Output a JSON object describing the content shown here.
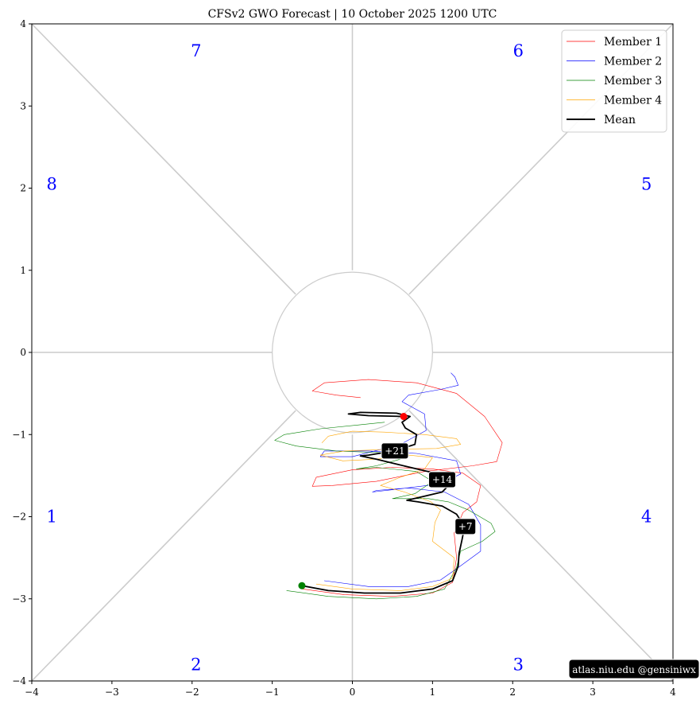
{
  "chart_data": {
    "type": "line",
    "title": "CFSv2 GWO Forecast   |   10  October  2025 1200 UTC",
    "xlim": [
      -4,
      4
    ],
    "ylim": [
      -4,
      4
    ],
    "x_ticks": [
      "−4",
      "−3",
      "−2",
      "−1",
      "0",
      "1",
      "2",
      "3",
      "4"
    ],
    "y_ticks": [
      "−4",
      "−3",
      "−2",
      "−1",
      "0",
      "1",
      "2",
      "3",
      "4"
    ],
    "phase_labels": [
      {
        "text": "1",
        "x": -3.75,
        "y": -2.0
      },
      {
        "text": "2",
        "x": -1.95,
        "y": -3.8
      },
      {
        "text": "3",
        "x": 2.07,
        "y": -3.8
      },
      {
        "text": "4",
        "x": 3.67,
        "y": -2.0
      },
      {
        "text": "5",
        "x": 3.67,
        "y": 2.05
      },
      {
        "text": "6",
        "x": 2.07,
        "y": 3.67
      },
      {
        "text": "7",
        "x": -1.95,
        "y": 3.67
      },
      {
        "text": "8",
        "x": -3.75,
        "y": 2.05
      }
    ],
    "legend_position": "top-right",
    "series": [
      {
        "name": "Member 1",
        "color": "#ff0000",
        "width": 0.6,
        "points": [
          [
            -0.62,
            -2.88
          ],
          [
            -0.1,
            -2.95
          ],
          [
            0.5,
            -2.97
          ],
          [
            1.0,
            -2.93
          ],
          [
            1.25,
            -2.8
          ],
          [
            1.3,
            -2.5
          ],
          [
            1.27,
            -2.2
          ],
          [
            1.38,
            -1.95
          ],
          [
            1.55,
            -1.82
          ],
          [
            1.6,
            -1.62
          ],
          [
            1.38,
            -1.47
          ],
          [
            1.0,
            -1.42
          ],
          [
            0.5,
            -1.4
          ],
          [
            0.0,
            -1.43
          ],
          [
            -0.45,
            -1.52
          ],
          [
            -0.5,
            -1.63
          ],
          [
            -0.25,
            -1.62
          ],
          [
            0.3,
            -1.57
          ],
          [
            0.9,
            -1.45
          ],
          [
            1.5,
            -1.38
          ],
          [
            1.8,
            -1.33
          ],
          [
            1.87,
            -1.1
          ],
          [
            1.65,
            -0.78
          ],
          [
            1.3,
            -0.5
          ],
          [
            0.8,
            -0.37
          ],
          [
            0.2,
            -0.33
          ],
          [
            -0.35,
            -0.37
          ],
          [
            -0.5,
            -0.47
          ],
          [
            -0.2,
            -0.52
          ],
          [
            0.1,
            -0.55
          ]
        ]
      },
      {
        "name": "Member 2",
        "color": "#0000ff",
        "width": 0.6,
        "points": [
          [
            -0.35,
            -2.78
          ],
          [
            0.2,
            -2.85
          ],
          [
            0.7,
            -2.85
          ],
          [
            1.1,
            -2.77
          ],
          [
            1.32,
            -2.62
          ],
          [
            1.6,
            -2.42
          ],
          [
            1.6,
            -2.1
          ],
          [
            1.45,
            -1.85
          ],
          [
            1.15,
            -1.7
          ],
          [
            0.7,
            -1.65
          ],
          [
            0.3,
            -1.68
          ],
          [
            0.25,
            -1.7
          ],
          [
            0.6,
            -1.66
          ],
          [
            1.1,
            -1.6
          ],
          [
            1.35,
            -1.48
          ],
          [
            1.3,
            -1.32
          ],
          [
            0.8,
            -1.23
          ],
          [
            0.2,
            -1.2
          ],
          [
            -0.35,
            -1.2
          ],
          [
            -0.4,
            -1.27
          ],
          [
            0.0,
            -1.27
          ],
          [
            0.6,
            -1.12
          ],
          [
            0.92,
            -0.95
          ],
          [
            0.9,
            -0.75
          ],
          [
            0.62,
            -0.6
          ],
          [
            0.7,
            -0.52
          ],
          [
            1.1,
            -0.45
          ],
          [
            1.32,
            -0.4
          ],
          [
            1.28,
            -0.3
          ],
          [
            1.23,
            -0.25
          ]
        ]
      },
      {
        "name": "Member 3",
        "color": "#008000",
        "width": 0.6,
        "points": [
          [
            -0.82,
            -2.9
          ],
          [
            -0.3,
            -2.97
          ],
          [
            0.3,
            -3.0
          ],
          [
            0.8,
            -2.97
          ],
          [
            1.15,
            -2.88
          ],
          [
            1.3,
            -2.62
          ],
          [
            1.35,
            -2.42
          ],
          [
            1.62,
            -2.3
          ],
          [
            1.78,
            -2.18
          ],
          [
            1.73,
            -2.08
          ],
          [
            1.45,
            -1.92
          ],
          [
            1.2,
            -1.82
          ],
          [
            0.95,
            -1.78
          ],
          [
            0.5,
            -1.78
          ],
          [
            0.78,
            -1.72
          ],
          [
            1.0,
            -1.57
          ],
          [
            0.8,
            -1.45
          ],
          [
            0.3,
            -1.4
          ],
          [
            0.05,
            -1.42
          ],
          [
            0.3,
            -1.38
          ],
          [
            0.6,
            -1.3
          ],
          [
            0.35,
            -1.22
          ],
          [
            -0.2,
            -1.2
          ],
          [
            -0.7,
            -1.14
          ],
          [
            -0.97,
            -1.07
          ],
          [
            -0.85,
            -1.0
          ],
          [
            -0.4,
            -0.93
          ],
          [
            0.1,
            -0.88
          ],
          [
            0.4,
            -0.85
          ]
        ]
      },
      {
        "name": "Member 4",
        "color": "#ffa500",
        "width": 0.6,
        "points": [
          [
            -0.45,
            -2.82
          ],
          [
            0.0,
            -2.88
          ],
          [
            0.6,
            -2.9
          ],
          [
            1.0,
            -2.85
          ],
          [
            1.25,
            -2.75
          ],
          [
            1.27,
            -2.5
          ],
          [
            1.0,
            -2.3
          ],
          [
            1.03,
            -2.07
          ],
          [
            1.1,
            -1.92
          ],
          [
            0.98,
            -1.82
          ],
          [
            0.65,
            -1.7
          ],
          [
            0.35,
            -1.62
          ],
          [
            0.6,
            -1.52
          ],
          [
            0.9,
            -1.42
          ],
          [
            1.0,
            -1.28
          ],
          [
            0.7,
            -1.25
          ],
          [
            0.3,
            -1.3
          ],
          [
            -0.12,
            -1.32
          ],
          [
            -0.4,
            -1.25
          ],
          [
            -0.1,
            -1.2
          ],
          [
            0.5,
            -1.18
          ],
          [
            1.05,
            -1.17
          ],
          [
            1.35,
            -1.12
          ],
          [
            1.3,
            -1.05
          ],
          [
            0.9,
            -1.0
          ],
          [
            0.4,
            -0.97
          ],
          [
            0.0,
            -0.96
          ],
          [
            -0.3,
            -1.02
          ],
          [
            -0.38,
            -1.1
          ]
        ]
      },
      {
        "name": "Mean",
        "color": "#000000",
        "width": 1.8,
        "points": [
          [
            -0.63,
            -2.84
          ],
          [
            -0.3,
            -2.9
          ],
          [
            0.15,
            -2.93
          ],
          [
            0.6,
            -2.93
          ],
          [
            1.0,
            -2.88
          ],
          [
            1.25,
            -2.78
          ],
          [
            1.32,
            -2.6
          ],
          [
            1.33,
            -2.45
          ],
          [
            1.37,
            -2.27
          ],
          [
            1.4,
            -2.12
          ],
          [
            1.3,
            -1.97
          ],
          [
            1.12,
            -1.87
          ],
          [
            0.82,
            -1.82
          ],
          [
            0.68,
            -1.8
          ],
          [
            0.9,
            -1.75
          ],
          [
            1.12,
            -1.7
          ],
          [
            1.22,
            -1.6
          ],
          [
            1.18,
            -1.5
          ],
          [
            0.9,
            -1.44
          ],
          [
            0.55,
            -1.36
          ],
          [
            0.3,
            -1.3
          ],
          [
            0.1,
            -1.26
          ],
          [
            0.2,
            -1.25
          ],
          [
            0.52,
            -1.2
          ],
          [
            0.78,
            -1.12
          ],
          [
            0.8,
            -1.0
          ],
          [
            0.66,
            -0.92
          ],
          [
            0.62,
            -0.85
          ],
          [
            0.72,
            -0.78
          ],
          [
            0.55,
            -0.74
          ],
          [
            0.1,
            -0.73
          ],
          [
            -0.05,
            -0.75
          ],
          [
            0.2,
            -0.77
          ],
          [
            0.64,
            -0.78
          ]
        ]
      }
    ],
    "start_point": {
      "x": -0.63,
      "y": -2.84,
      "color": "#008000"
    },
    "end_point": {
      "x": 0.64,
      "y": -0.78,
      "color": "#ff0000"
    },
    "day_markers": [
      {
        "label": "+7",
        "x": 1.41,
        "y": -2.12
      },
      {
        "label": "+14",
        "x": 1.12,
        "y": -1.55
      },
      {
        "label": "+21",
        "x": 0.53,
        "y": -1.2
      }
    ],
    "credit": "atlas.niu.edu  @gensiniwx"
  }
}
